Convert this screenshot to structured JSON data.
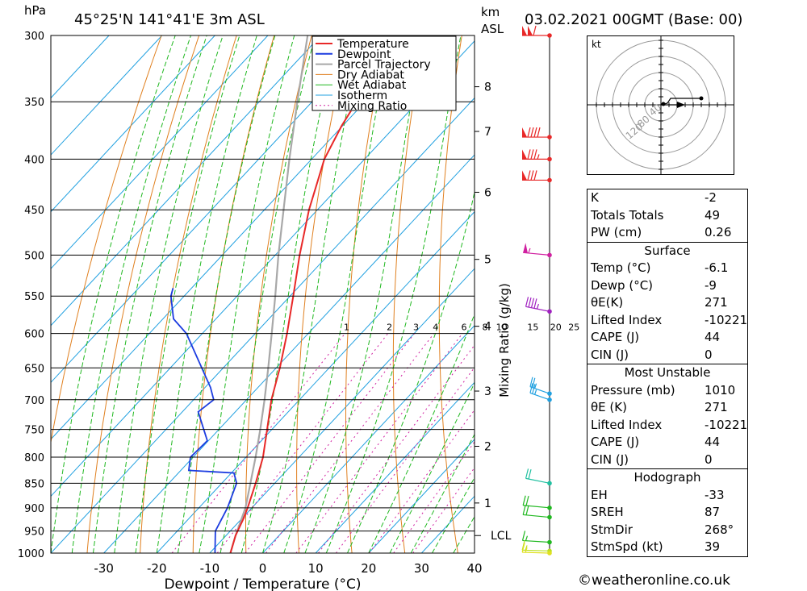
{
  "header": {
    "units_left": "hPa",
    "location": "45°25'N  141°41'E  3m  ASL",
    "units_km": "km",
    "units_asl": "ASL",
    "datetime": "03.02.2021  00GMT  (Base: 00)"
  },
  "chart_data": {
    "type": "line",
    "xlabel": "Dewpoint / Temperature (°C)",
    "ylabel": "hPa",
    "y2label": "Mixing Ratio (g/kg)",
    "xlim": [
      -40,
      40
    ],
    "ylim": [
      1000,
      300
    ],
    "y_scale": "log",
    "x_ticks": [
      -30,
      -20,
      -10,
      0,
      10,
      20,
      30,
      40
    ],
    "pressure_levels": [
      300,
      350,
      400,
      450,
      500,
      550,
      600,
      650,
      700,
      750,
      800,
      850,
      900,
      950,
      1000
    ],
    "km_ticks": [
      {
        "km": 8,
        "p": 338
      },
      {
        "km": 7,
        "p": 375
      },
      {
        "km": 6,
        "p": 432
      },
      {
        "km": 5,
        "p": 505
      },
      {
        "km": 4,
        "p": 590
      },
      {
        "km": 3,
        "p": 686
      },
      {
        "km": 2,
        "p": 780
      },
      {
        "km": 1,
        "p": 890
      }
    ],
    "lcl_label": "LCL",
    "lcl_pressure": 960,
    "mixing_ratio_labels": [
      "1",
      "2",
      "3",
      "4",
      "6",
      "8",
      "10",
      "15",
      "20",
      "25"
    ],
    "mixing_ratio_label_pressure": 600,
    "legend": [
      "Temperature",
      "Dewpoint",
      "Parcel Trajectory",
      "Dry Adiabat",
      "Wet Adiabat",
      "Isotherm",
      "Mixing Ratio"
    ],
    "legend_position": "top-right",
    "colors": {
      "temperature": "#e82828",
      "dewpoint": "#1c3ce0",
      "parcel": "#a8a8a8",
      "dry_adiabat": "#e08020",
      "wet_adiabat": "#20b820",
      "isotherm": "#20a0e0",
      "mixing_ratio": "#d020a0"
    },
    "series": [
      {
        "name": "Temperature",
        "points": [
          [
            1000,
            -6.1
          ],
          [
            960,
            -8.2
          ],
          [
            925,
            -9.6
          ],
          [
            900,
            -10.8
          ],
          [
            850,
            -13.6
          ],
          [
            800,
            -16.8
          ],
          [
            750,
            -20.9
          ],
          [
            700,
            -25.3
          ],
          [
            650,
            -29.3
          ],
          [
            600,
            -34.0
          ],
          [
            550,
            -39.4
          ],
          [
            500,
            -45.4
          ],
          [
            450,
            -51.6
          ],
          [
            400,
            -57.6
          ],
          [
            370,
            -60.2
          ],
          [
            350,
            -61.6
          ],
          [
            330,
            -58.8
          ],
          [
            315,
            -58.2
          ],
          [
            300,
            -59.0
          ]
        ]
      },
      {
        "name": "Dewpoint",
        "points": [
          [
            1000,
            -9.0
          ],
          [
            950,
            -12.8
          ],
          [
            900,
            -14.6
          ],
          [
            850,
            -17.2
          ],
          [
            830,
            -19.5
          ],
          [
            825,
            -28.5
          ],
          [
            800,
            -30.5
          ],
          [
            770,
            -30.2
          ],
          [
            720,
            -37.0
          ],
          [
            700,
            -36.2
          ],
          [
            680,
            -39.0
          ],
          [
            600,
            -53.0
          ],
          [
            580,
            -58.0
          ],
          [
            550,
            -62.5
          ],
          [
            540,
            -63.5
          ]
        ]
      },
      {
        "name": "Parcel Trajectory",
        "points": [
          [
            1000,
            -6.1
          ],
          [
            960,
            -8.2
          ],
          [
            900,
            -11.2
          ],
          [
            850,
            -14.6
          ],
          [
            800,
            -18.2
          ],
          [
            750,
            -22.2
          ],
          [
            700,
            -26.6
          ],
          [
            650,
            -31.5
          ],
          [
            600,
            -36.9
          ],
          [
            550,
            -42.8
          ],
          [
            500,
            -49.4
          ],
          [
            450,
            -56.4
          ],
          [
            400,
            -64.2
          ],
          [
            350,
            -72.8
          ],
          [
            300,
            -82.5
          ]
        ]
      }
    ],
    "wind_barbs": [
      {
        "p": 300,
        "color": "#e82828",
        "dir": 270,
        "spd": 110
      },
      {
        "p": 380,
        "color": "#e82828",
        "dir": 270,
        "spd": 90
      },
      {
        "p": 400,
        "color": "#e82828",
        "dir": 270,
        "spd": 85
      },
      {
        "p": 420,
        "color": "#e82828",
        "dir": 270,
        "spd": 80
      },
      {
        "p": 500,
        "color": "#d020a0",
        "dir": 285,
        "spd": 55
      },
      {
        "p": 570,
        "color": "#a020c0",
        "dir": 300,
        "spd": 45
      },
      {
        "p": 690,
        "color": "#20a0e0",
        "dir": 315,
        "spd": 25
      },
      {
        "p": 700,
        "color": "#20a0e0",
        "dir": 315,
        "spd": 25
      },
      {
        "p": 850,
        "color": "#20c0a0",
        "dir": 300,
        "spd": 20
      },
      {
        "p": 900,
        "color": "#20b820",
        "dir": 285,
        "spd": 20
      },
      {
        "p": 920,
        "color": "#20b820",
        "dir": 285,
        "spd": 20
      },
      {
        "p": 975,
        "color": "#20b820",
        "dir": 280,
        "spd": 15
      },
      {
        "p": 995,
        "color": "#b8e020",
        "dir": 275,
        "spd": 15
      },
      {
        "p": 1000,
        "color": "#e0e020",
        "dir": 275,
        "spd": 15
      }
    ]
  },
  "hodograph": {
    "unit_label": "kt",
    "ring_labels": [
      "40",
      "80",
      "120"
    ],
    "trace": [
      [
        0,
        0
      ],
      [
        8,
        2
      ],
      [
        12,
        8
      ],
      [
        30,
        8
      ],
      [
        50,
        8
      ]
    ],
    "storm_motion": [
      20,
      0
    ]
  },
  "indices": {
    "top": [
      {
        "k": "K",
        "v": "-2"
      },
      {
        "k": "Totals Totals",
        "v": "49"
      },
      {
        "k": "PW (cm)",
        "v": "0.26"
      }
    ],
    "surface_title": "Surface",
    "surface": [
      {
        "k": "Temp (°C)",
        "v": "-6.1"
      },
      {
        "k": "Dewp (°C)",
        "v": "-9"
      },
      {
        "k": "θE(K)",
        "v": "271"
      },
      {
        "k": "Lifted Index",
        "v": "-10221"
      },
      {
        "k": "CAPE (J)",
        "v": "44"
      },
      {
        "k": "CIN (J)",
        "v": "0"
      }
    ],
    "mu_title": "Most Unstable",
    "mu": [
      {
        "k": "Pressure (mb)",
        "v": "1010"
      },
      {
        "k": "θE (K)",
        "v": "271"
      },
      {
        "k": "Lifted Index",
        "v": "-10221"
      },
      {
        "k": "CAPE (J)",
        "v": "44"
      },
      {
        "k": "CIN (J)",
        "v": "0"
      }
    ],
    "hodo_title": "Hodograph",
    "hodo": [
      {
        "k": "EH",
        "v": "-33"
      },
      {
        "k": "SREH",
        "v": "87"
      },
      {
        "k": "StmDir",
        "v": "268°"
      },
      {
        "k": "StmSpd (kt)",
        "v": "39"
      }
    ]
  },
  "footer": {
    "copyright": "©weatheronline.co.uk"
  }
}
